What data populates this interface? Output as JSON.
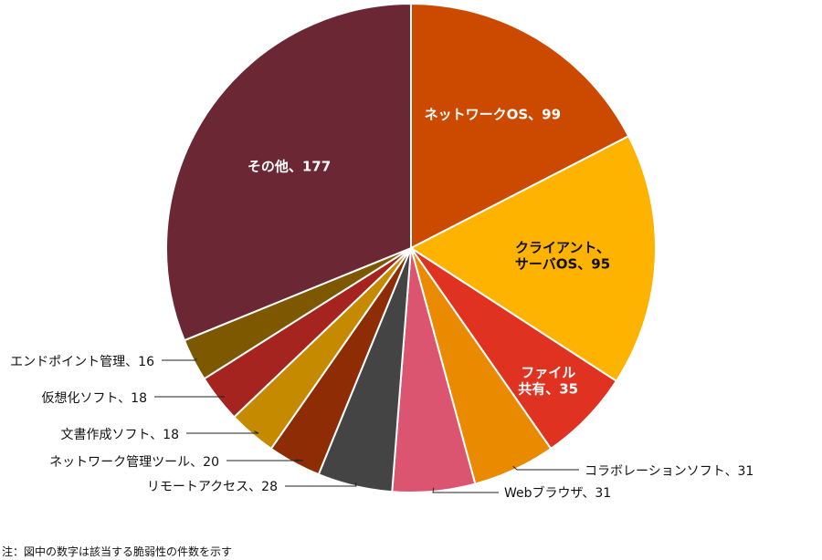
{
  "chart_data": {
    "type": "pie",
    "title": "",
    "slices": [
      {
        "label": "ネットワークOS",
        "value": 99,
        "color": "#cc4a00",
        "text_color": "#ffffff"
      },
      {
        "label": "クライアント、サーバOS",
        "value": 95,
        "color": "#fdb300",
        "text_color": "#111111"
      },
      {
        "label": "ファイル共有",
        "value": 35,
        "color": "#e03221",
        "text_color": "#ffffff"
      },
      {
        "label": "コラボレーションソフト",
        "value": 31,
        "color": "#e98a00",
        "text_color": "#111111"
      },
      {
        "label": "Webブラウザ",
        "value": 31,
        "color": "#dc5570",
        "text_color": "#111111"
      },
      {
        "label": "リモートアクセス",
        "value": 28,
        "color": "#444444",
        "text_color": "#111111"
      },
      {
        "label": "ネットワーク管理ツール",
        "value": 20,
        "color": "#8e2d05",
        "text_color": "#111111"
      },
      {
        "label": "文書作成ソフト",
        "value": 18,
        "color": "#c58a00",
        "text_color": "#111111"
      },
      {
        "label": "仮想化ソフト",
        "value": 18,
        "color": "#a52420",
        "text_color": "#111111"
      },
      {
        "label": "エンドポイント管理",
        "value": 16,
        "color": "#7d5800",
        "text_color": "#111111"
      },
      {
        "label": "その他",
        "value": 177,
        "color": "#6b2834",
        "text_color": "#ffffff"
      }
    ],
    "data_labels": [
      "ネットワークOS、99",
      [
        "クライアント、",
        "サーバOS、95"
      ],
      [
        "ファイル",
        "共有、35"
      ],
      "コラボレーションソフト、31",
      "Webブラウザ、31",
      "リモートアクセス、28",
      "ネットワーク管理ツール、20",
      "文書作成ソフト、18",
      "仮想化ソフト、18",
      "エンドポイント管理、16",
      "その他、177"
    ],
    "start_angle": "12 o'clock",
    "direction": "clockwise",
    "legend": "none"
  },
  "note": "注：図中の数字は該当する脆弱性の件数を示す"
}
